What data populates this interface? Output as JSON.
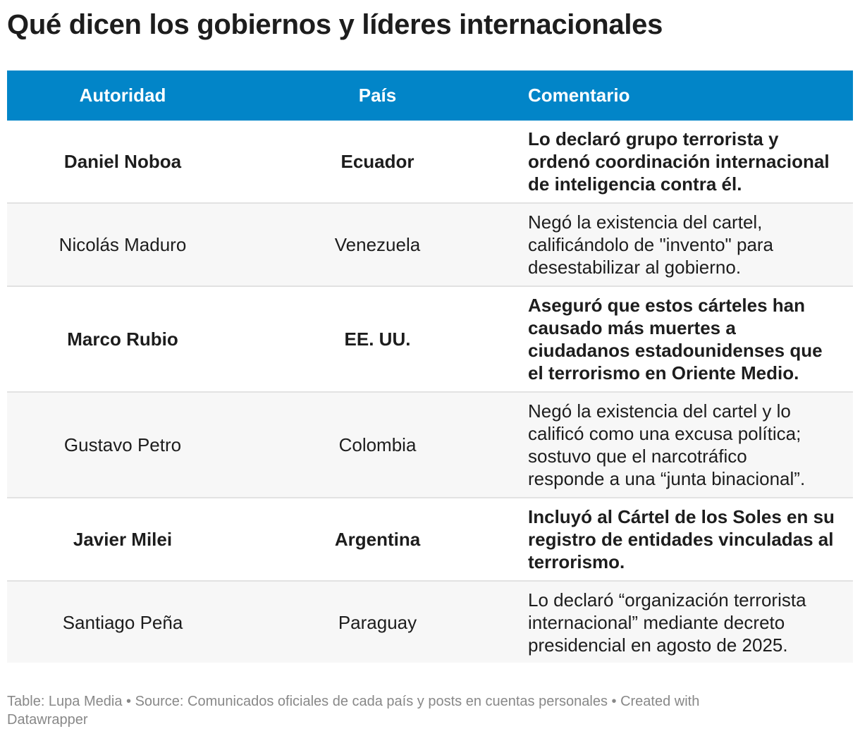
{
  "title": "Qué dicen los gobiernos y líderes internacionales",
  "chart_data": {
    "type": "table",
    "columns": [
      "Autoridad",
      "País",
      "Comentario"
    ],
    "rows": [
      {
        "autoridad": "Daniel Noboa",
        "pais": "Ecuador",
        "comentario_lines": [
          "Lo declaró grupo terrorista y",
          "ordenó coordinación internacional",
          "de inteligencia contra él."
        ],
        "bold": true,
        "row_height": 117
      },
      {
        "autoridad": "Nicolás Maduro",
        "pais": "Venezuela",
        "comentario_lines": [
          "Negó la existencia del cartel,",
          "calificándolo de \"invento\" para",
          "desestabilizar al gobierno."
        ],
        "bold": false,
        "row_height": 118
      },
      {
        "autoridad": "Marco Rubio",
        "pais": "EE. UU.",
        "comentario_lines": [
          "Aseguró que estos cárteles han",
          "causado más muertes a",
          "ciudadanos estadounidenses que",
          "el terrorismo en Oriente Medio."
        ],
        "bold": true,
        "row_height": 150
      },
      {
        "autoridad": "Gustavo Petro",
        "pais": "Colombia",
        "comentario_lines": [
          "Negó la existencia del cartel y lo",
          "calificó como una excusa política;",
          "sostuvo que el narcotráfico",
          "responde a una “junta binacional”."
        ],
        "bold": false,
        "row_height": 150
      },
      {
        "autoridad": "Javier Milei",
        "pais": "Argentina",
        "comentario_lines": [
          "Incluyó al Cártel de los Soles en su",
          "registro de entidades vinculadas al",
          "terrorismo."
        ],
        "bold": true,
        "row_height": 118
      },
      {
        "autoridad": "Santiago Peña",
        "pais": "Paraguay",
        "comentario_lines": [
          "Lo declaró “organización terrorista",
          "internacional” mediante decreto",
          "presidencial en agosto de 2025."
        ],
        "bold": false,
        "row_height": 116
      }
    ]
  },
  "footer": {
    "line1": "Table: Lupa Media • Source: Comunicados oficiales de cada país y posts en cuentas personales • Created with",
    "line2": "Datawrapper"
  },
  "colors": {
    "header_bg": "#0285c8",
    "header_text": "#ffffff",
    "alt_row_bg": "#f7f7f7",
    "row_divider": "#e2e2e2",
    "footer_text": "#888888"
  }
}
